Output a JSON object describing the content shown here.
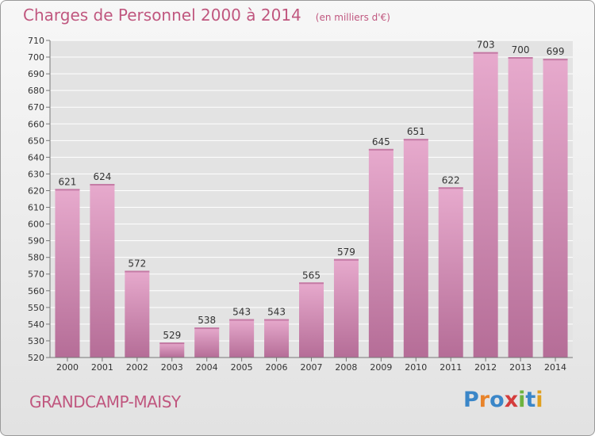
{
  "header": {
    "title": "Charges de Personnel 2000 à 2014",
    "subtitle": "(en milliers d'€)"
  },
  "footer": {
    "town": "GRANDCAMP-MAISY",
    "logo": "Proxiti",
    "logo_letters": [
      "P",
      "r",
      "o",
      "x",
      "i",
      "t",
      "i"
    ],
    "logo_colors": [
      "#3a86c8",
      "#e8832a",
      "#3a86c8",
      "#d43c3c",
      "#6db33f",
      "#3a86c8",
      "#e0a020"
    ]
  },
  "colors": {
    "bar": "#d98fba",
    "bar_dark": "#b56d97",
    "accent": "#c0577f",
    "grid": "#ffffff"
  },
  "chart_data": {
    "type": "bar",
    "title": "Charges de Personnel 2000 à 2014",
    "subtitle": "(en milliers d'€)",
    "categories": [
      "2000",
      "2001",
      "2002",
      "2003",
      "2004",
      "2005",
      "2006",
      "2007",
      "2008",
      "2009",
      "2010",
      "2011",
      "2012",
      "2013",
      "2014"
    ],
    "values": [
      621,
      624,
      572,
      529,
      538,
      543,
      543,
      565,
      579,
      645,
      651,
      622,
      703,
      700,
      699
    ],
    "ylim": [
      520,
      710
    ],
    "yticks": [
      520,
      530,
      540,
      550,
      560,
      570,
      580,
      590,
      600,
      610,
      620,
      630,
      640,
      650,
      660,
      670,
      680,
      690,
      700,
      710
    ],
    "grid": true,
    "data_labels": true
  }
}
